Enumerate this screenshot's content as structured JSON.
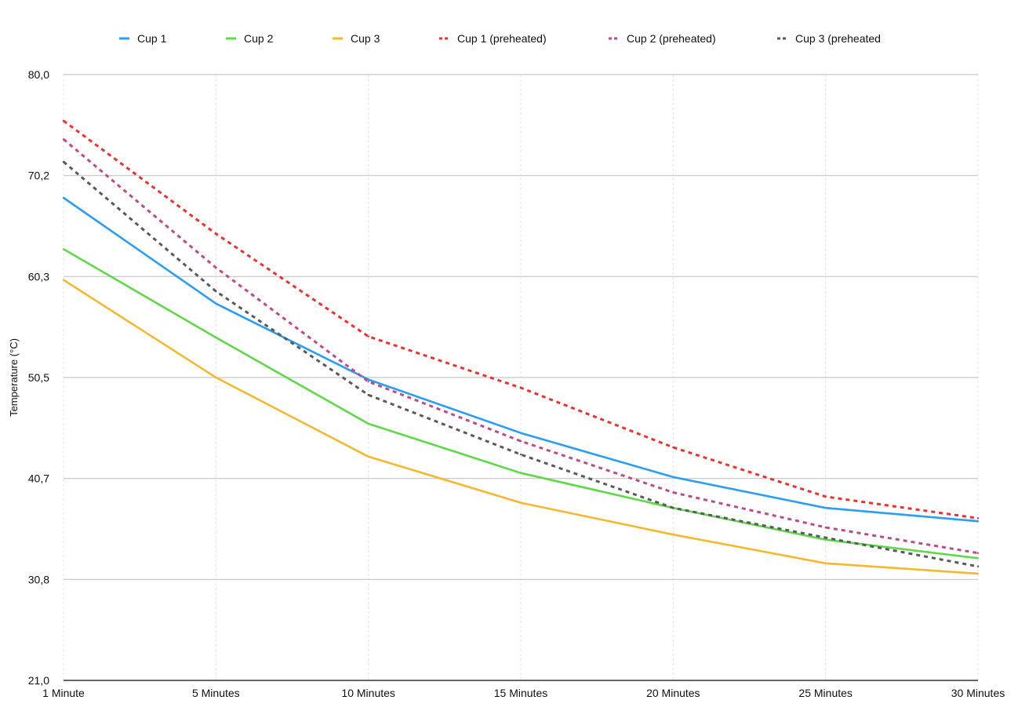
{
  "chart_data": {
    "type": "line",
    "title": "",
    "xlabel": "",
    "ylabel": "Temperature (°C)",
    "categories": [
      "1 Minute",
      "5 Minutes",
      "10 Minutes",
      "15 Minutes",
      "20 Minutes",
      "25 Minutes",
      "30 Minutes"
    ],
    "y_ticks": [
      "21,0",
      "30,8",
      "40,7",
      "50,5",
      "60,3",
      "70,2",
      "80,0"
    ],
    "ylim": [
      21.0,
      80.0
    ],
    "grid": true,
    "legend_position": "top",
    "series": [
      {
        "name": "Cup 1",
        "color": "#2a9df4",
        "dashed": false,
        "values": [
          68.0,
          57.7,
          50.3,
          45.1,
          40.8,
          37.8,
          36.5
        ]
      },
      {
        "name": "Cup 2",
        "color": "#5fd94a",
        "dashed": false,
        "values": [
          63.0,
          54.4,
          46.0,
          41.2,
          37.8,
          34.7,
          32.9
        ]
      },
      {
        "name": "Cup 3",
        "color": "#f5b82e",
        "dashed": false,
        "values": [
          60.0,
          50.5,
          42.8,
          38.3,
          35.2,
          32.4,
          31.4
        ]
      },
      {
        "name": "Cup 1 (preheated)",
        "color": "#f0302c",
        "dashed": true,
        "values": [
          75.5,
          64.5,
          54.5,
          49.5,
          43.7,
          38.9,
          36.8
        ]
      },
      {
        "name": "Cup 2 (preheated)",
        "color": "#c04a86",
        "dashed": true,
        "values": [
          73.7,
          61.2,
          50.1,
          44.3,
          39.3,
          35.9,
          33.4
        ]
      },
      {
        "name": "Cup 3 (preheated",
        "color": "#5a5a5a",
        "dashed": true,
        "values": [
          71.5,
          58.9,
          48.8,
          43.0,
          37.8,
          34.9,
          32.1
        ]
      }
    ]
  }
}
